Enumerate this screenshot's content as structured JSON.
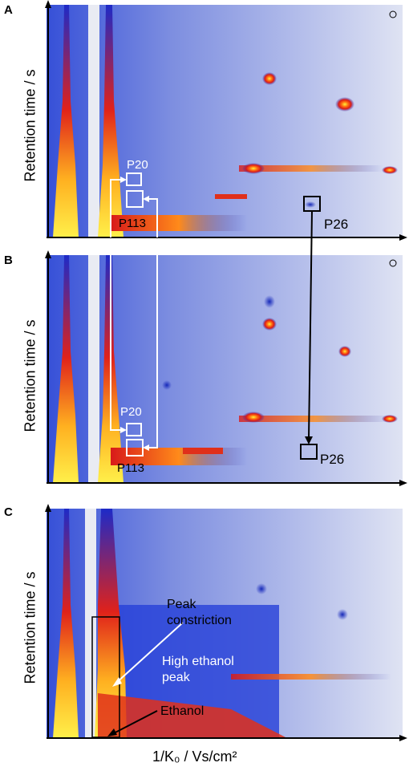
{
  "x_axis_label": "1/K₀ / Vs/cm²",
  "colors": {
    "background_signal": "#5a6fd8",
    "low": "#1a2fcf",
    "mid": "#e2241a",
    "high": "#ffe23a",
    "annotation_white": "#ffffff",
    "annotation_black": "#000000"
  },
  "chart_data": [
    {
      "type": "heatmap",
      "panel": "A",
      "ylabel": "Retention time / s",
      "xlabel": "",
      "annotations": [
        "P20",
        "P113",
        "P26"
      ]
    },
    {
      "type": "heatmap",
      "panel": "B",
      "ylabel": "Retention time / s",
      "xlabel": "",
      "annotations": [
        "P20",
        "P113",
        "P26"
      ]
    },
    {
      "type": "heatmap",
      "panel": "C",
      "ylabel": "Retention time / s",
      "xlabel": "1/K₀ / Vs/cm²",
      "annotations": [
        "Peak\nconstriction",
        "High ethanol\npeak",
        "Ethanol"
      ]
    }
  ],
  "labels": {
    "A": "A",
    "B": "B",
    "C": "C",
    "ylabel": "Retention time / s",
    "P20": "P20",
    "P113": "P113",
    "P26": "P26",
    "peak_constriction_1": "Peak",
    "peak_constriction_2": "constriction",
    "high_ethanol_1": "High ethanol",
    "high_ethanol_2": "peak",
    "ethanol": "Ethanol"
  }
}
